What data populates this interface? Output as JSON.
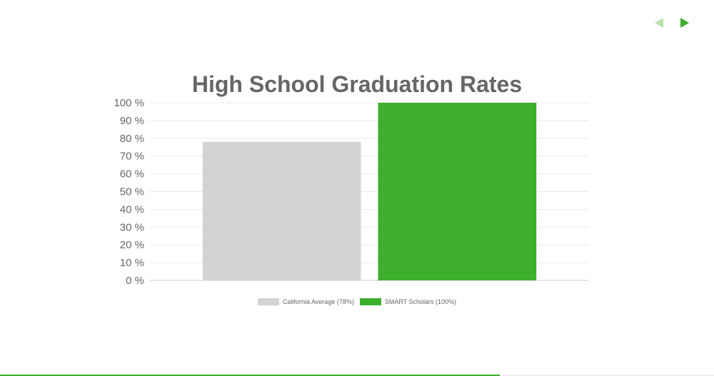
{
  "nav": {
    "prev_icon": "triangle-left-icon",
    "next_icon": "triangle-right-icon"
  },
  "colors": {
    "accent": "#3daf2c",
    "accent_light": "#b8e0b0",
    "gray_bar": "#d3d3d3",
    "text": "#666666",
    "grid": "#e8e8e8"
  },
  "progress": {
    "fraction": 0.7
  },
  "chart_data": {
    "type": "bar",
    "title": "High School Graduation Rates",
    "xlabel": "",
    "ylabel": "",
    "ylim": [
      0,
      100
    ],
    "yticks": [
      0,
      10,
      20,
      30,
      40,
      50,
      60,
      70,
      80,
      90,
      100
    ],
    "ytick_labels": [
      "0 %",
      "10 %",
      "20 %",
      "30 %",
      "40 %",
      "50 %",
      "60 %",
      "70 %",
      "80 %",
      "90 %",
      "100 %"
    ],
    "grid": true,
    "legend_position": "bottom",
    "series": [
      {
        "name": "California Average (78%)",
        "value": 78,
        "color": "#d3d3d3"
      },
      {
        "name": "SMART Scholars (100%)",
        "value": 100,
        "color": "#3daf2c"
      }
    ]
  }
}
